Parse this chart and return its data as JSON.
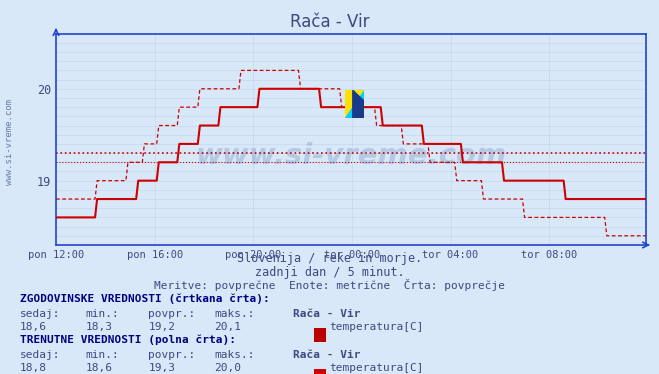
{
  "title": "Rača - Vir",
  "background_color": "#d8e8f8",
  "plot_bg_color": "#d8e8f8",
  "line_color": "#cc0000",
  "grid_color_major": "#a0b8d0",
  "grid_color_minor": "#c0d4e8",
  "axis_color": "#2244cc",
  "text_color": "#404880",
  "subtitle1": "Slovenija / reke in morje.",
  "subtitle2": "zadnji dan / 5 minut.",
  "subtitle3": "Meritve: povprečne  Enote: metrične  Črta: povprečje",
  "xlabel_times": [
    "pon 12:00",
    "pon 16:00",
    "pon 20:00",
    "tor 00:00",
    "tor 04:00",
    "tor 08:00"
  ],
  "ylim": [
    18.3,
    20.6
  ],
  "xlim": [
    0,
    287
  ],
  "avg_hist": 19.2,
  "avg_curr": 19.3,
  "hist_label_sedaj": "18,6",
  "hist_label_min": "18,3",
  "hist_label_povpr": "19,2",
  "hist_label_maks": "20,1",
  "curr_label_sedaj": "18,8",
  "curr_label_min": "18,6",
  "curr_label_povpr": "19,3",
  "curr_label_maks": "20,0",
  "watermark": "www.si-vreme.com",
  "watermark_color": "#1a3a8a",
  "watermark_alpha": 0.18
}
